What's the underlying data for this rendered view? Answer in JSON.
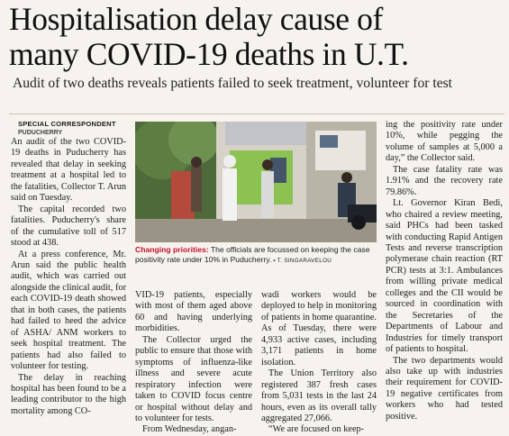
{
  "headline": {
    "line1": "Hospitalisation delay cause of",
    "line2": "many COVID-19 deaths in U.T."
  },
  "subhead": "Audit of two deaths reveals patients failed to seek treatment, volunteer for test",
  "byline": "SPECIAL CORRESPONDENT",
  "dateline": "PUDUCHERRY",
  "photo": {
    "caption_lead": "Changing priorities:",
    "caption_text": " The officials are focussed on keeping the case positivity rate under 10% in Puducherry.",
    "credit": " ▪ T. SINGARAVELOU"
  },
  "col1": [
    "An audit of the two COVID-19 deaths in Puducherry has revealed that delay in seeking treatment at a hospital led to the fatalities, Collector T. Arun said on Tuesday.",
    "The capital recorded two fatalities. Puducherry's share of the cumulative toll of 517 stood at 438.",
    "At a press conference, Mr. Arun said the public health audit, which was carried out alongside the clinical audit, for each COVID-19 death showed that in both cases, the patients had failed to heed the advice of ASHA/ ANM workers to seek hospital treatment. The patients had also failed to volunteer for testing.",
    "The delay in reaching hospital has been found to be a leading contributor to the high mortality among CO-"
  ],
  "col2": [
    "VID-19 patients, especially with most of them aged above 60 and having underlying morbidities.",
    "The Collector urged the public to ensure that those with symptoms of influenza-like illness and severe acute respiratory infection were taken to COVID focus centre or hospital without delay and to volunteer for tests.",
    "From Wednesday, angan-"
  ],
  "col3": [
    "wadi workers would be deployed to help in monitoring of patients in home quarantine. As of Tuesday, there were 4,933 active cases, including 3,171 patients in home isolation.",
    "The Union Territory also registered 387 fresh cases from 5,031 tests in the last 24 hours, even as its overall tally aggregated 27,066.",
    "“We are focused on keep-"
  ],
  "col4": [
    "ing the positivity rate under 10%, while pegging the volume of samples at 5,000 a day,” the Collector said.",
    "The case fatality rate was 1.91% and the recovery rate 79.86%.",
    "Lt. Governor Kiran Bedi, who chaired a review meeting, said PHCs had been tasked with conducting Rapid Antigen Tests and reverse transcription polymerase chain reaction (RT PCR) tests at 3:1. Ambulances from willing private medical colleges and the CII would be sourced in coordination with the Secretaries of the Departments of Labour and Industries for timely transport of patients to hospital.",
    "The two departments would also take up with industries their requirement for COVID-19 negative certificates from workers who had tested positive."
  ]
}
